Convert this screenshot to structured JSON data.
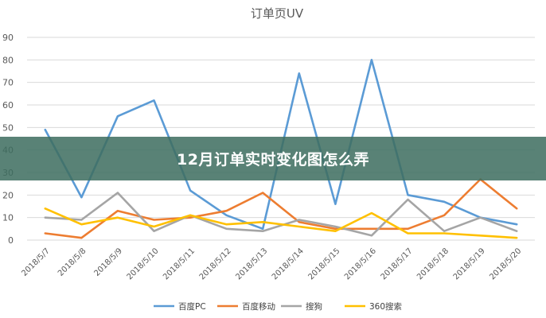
{
  "banner": {
    "text": "12月订单实时变化图怎么弄"
  },
  "colors": {
    "banner_bg": "#3e6e5f",
    "grid": "#d9d9d9"
  },
  "chart_data": {
    "type": "line",
    "title": "订单页UV",
    "xlabel": "",
    "ylabel": "",
    "ylim": [
      0,
      90
    ],
    "yticks": [
      0,
      10,
      20,
      30,
      40,
      50,
      60,
      70,
      80,
      90
    ],
    "grid": true,
    "legend_position": "bottom",
    "categories": [
      "2018/5/7",
      "2018/5/8",
      "2018/5/9",
      "2018/5/10",
      "2018/5/11",
      "2018/5/12",
      "2018/5/13",
      "2018/5/14",
      "2018/5/15",
      "2018/5/16",
      "2018/5/17",
      "2018/5/18",
      "2018/5/19",
      "2018/5/20"
    ],
    "series": [
      {
        "name": "百度PC",
        "color": "#5b9bd5",
        "values": [
          49,
          19,
          55,
          62,
          22,
          11,
          5,
          74,
          16,
          80,
          20,
          17,
          10,
          7
        ]
      },
      {
        "name": "百度移动",
        "color": "#ed7d31",
        "values": [
          3,
          1,
          13,
          9,
          10,
          13,
          21,
          8,
          5,
          5,
          5,
          11,
          27,
          14
        ]
      },
      {
        "name": "搜狗",
        "color": "#a5a5a5",
        "values": [
          10,
          9,
          21,
          4,
          11,
          5,
          4,
          9,
          6,
          2,
          18,
          4,
          10,
          4
        ]
      },
      {
        "name": "360搜索",
        "color": "#ffc000",
        "values": [
          14,
          7,
          10,
          6,
          11,
          7,
          8,
          6,
          4,
          12,
          3,
          3,
          2,
          1
        ]
      }
    ]
  }
}
